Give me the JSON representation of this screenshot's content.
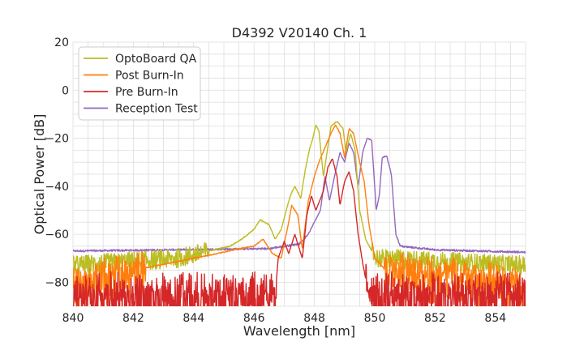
{
  "chart_data": {
    "type": "line",
    "title": "D4392 V20140 Ch. 1",
    "xlabel": "Wavelength [nm]",
    "ylabel": "Optical Power [dB]",
    "xlim": [
      840,
      855
    ],
    "ylim": [
      -90,
      20
    ],
    "xticks": [
      840,
      842,
      844,
      846,
      848,
      850,
      852,
      854
    ],
    "xtick_labels": [
      "840",
      "842",
      "844",
      "846",
      "848",
      "850",
      "852",
      "854"
    ],
    "yticks": [
      20,
      0,
      -20,
      -40,
      -60,
      -80
    ],
    "ytick_labels": [
      "20",
      "0",
      "−20",
      "−40",
      "−60",
      "−80"
    ],
    "xminor_step": 0.5,
    "yminor_step": 5,
    "grid": true,
    "legend_position": "top-left",
    "series": [
      {
        "name": "OptoBoard QA",
        "color": "#bcbd22",
        "noise_floor": -73,
        "noise_floor_note": "noisy floor between -78 and -68 dB",
        "points": [
          [
            840,
            -73
          ],
          [
            843.5,
            -70
          ],
          [
            844.5,
            -67
          ],
          [
            845.2,
            -65
          ],
          [
            845.6,
            -62
          ],
          [
            846.0,
            -58
          ],
          [
            846.2,
            -54
          ],
          [
            846.5,
            -56
          ],
          [
            846.7,
            -62
          ],
          [
            846.9,
            -58
          ],
          [
            847.2,
            -44
          ],
          [
            847.35,
            -40
          ],
          [
            847.55,
            -45
          ],
          [
            847.7,
            -33
          ],
          [
            847.85,
            -24
          ],
          [
            847.95,
            -20
          ],
          [
            848.05,
            -14.5
          ],
          [
            848.15,
            -17
          ],
          [
            848.3,
            -36
          ],
          [
            848.55,
            -15
          ],
          [
            848.75,
            -13
          ],
          [
            848.95,
            -16
          ],
          [
            849.05,
            -26
          ],
          [
            849.2,
            -18
          ],
          [
            849.35,
            -25
          ],
          [
            849.5,
            -50
          ],
          [
            849.7,
            -62
          ],
          [
            849.9,
            -67
          ],
          [
            850.1,
            -70
          ],
          [
            855,
            -73
          ]
        ]
      },
      {
        "name": "Post Burn-In",
        "color": "#ff7f0e",
        "noise_floor": -80,
        "noise_floor_note": "heavy noise between -90 and -70 dB",
        "points": [
          [
            840,
            -80
          ],
          [
            844.8,
            -68
          ],
          [
            845.5,
            -66
          ],
          [
            846.0,
            -65
          ],
          [
            846.3,
            -62
          ],
          [
            846.6,
            -68
          ],
          [
            846.9,
            -70
          ],
          [
            847.1,
            -58
          ],
          [
            847.25,
            -48
          ],
          [
            847.45,
            -52
          ],
          [
            847.6,
            -66
          ],
          [
            847.8,
            -46
          ],
          [
            848.0,
            -36
          ],
          [
            848.15,
            -30
          ],
          [
            848.35,
            -24
          ],
          [
            848.55,
            -18
          ],
          [
            848.7,
            -14.5
          ],
          [
            848.85,
            -18
          ],
          [
            849.0,
            -28
          ],
          [
            849.15,
            -16
          ],
          [
            849.3,
            -18
          ],
          [
            849.5,
            -30
          ],
          [
            849.65,
            -38
          ],
          [
            849.8,
            -55
          ],
          [
            850.0,
            -70
          ],
          [
            850.3,
            -74
          ],
          [
            855,
            -80
          ]
        ]
      },
      {
        "name": "Pre Burn-In",
        "color": "#d62728",
        "noise_floor": -85,
        "noise_floor_note": "very heavy noise between -90 and -75 dB",
        "points": [
          [
            840,
            -85
          ],
          [
            846.7,
            -85
          ],
          [
            846.8,
            -70
          ],
          [
            847.0,
            -63
          ],
          [
            847.15,
            -68
          ],
          [
            847.35,
            -60
          ],
          [
            847.6,
            -70
          ],
          [
            847.75,
            -52
          ],
          [
            847.9,
            -44
          ],
          [
            848.05,
            -50
          ],
          [
            848.3,
            -42
          ],
          [
            848.45,
            -32
          ],
          [
            848.6,
            -28.5
          ],
          [
            848.75,
            -36
          ],
          [
            848.85,
            -48
          ],
          [
            849.0,
            -38
          ],
          [
            849.15,
            -34
          ],
          [
            849.3,
            -42
          ],
          [
            849.45,
            -60
          ],
          [
            849.6,
            -72
          ],
          [
            849.8,
            -85
          ],
          [
            855,
            -85
          ]
        ]
      },
      {
        "name": "Reception Test",
        "color": "#9467bd",
        "noise_floor": -67,
        "noise_floor_note": "flat floor near -67 dB",
        "points": [
          [
            840,
            -67
          ],
          [
            846.5,
            -66
          ],
          [
            847.0,
            -65
          ],
          [
            847.5,
            -64
          ],
          [
            847.8,
            -60
          ],
          [
            848.0,
            -55
          ],
          [
            848.2,
            -50
          ],
          [
            848.35,
            -36
          ],
          [
            848.5,
            -46
          ],
          [
            848.7,
            -34
          ],
          [
            848.85,
            -26
          ],
          [
            849.0,
            -30
          ],
          [
            849.15,
            -22
          ],
          [
            849.3,
            -26
          ],
          [
            849.45,
            -40
          ],
          [
            849.6,
            -26
          ],
          [
            849.75,
            -20
          ],
          [
            849.9,
            -21
          ],
          [
            850.05,
            -50
          ],
          [
            850.15,
            -44
          ],
          [
            850.25,
            -28
          ],
          [
            850.4,
            -27.5
          ],
          [
            850.55,
            -35
          ],
          [
            850.7,
            -60
          ],
          [
            850.85,
            -65
          ],
          [
            852,
            -66.5
          ],
          [
            855,
            -67.5
          ]
        ]
      }
    ]
  }
}
